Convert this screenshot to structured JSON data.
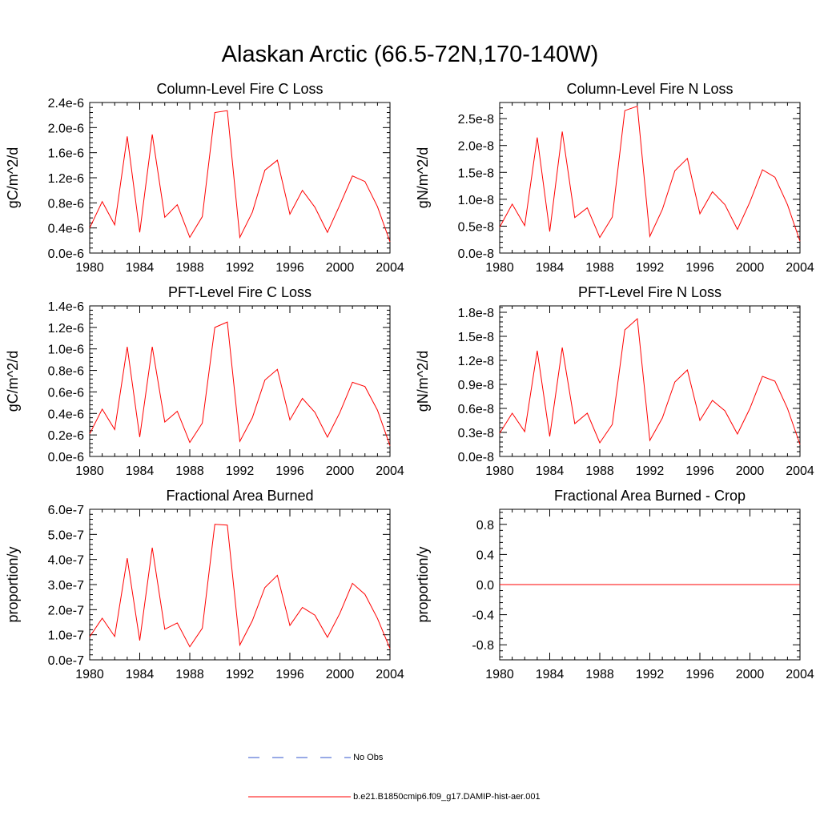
{
  "title": "Alaskan Arctic (66.5-72N,170-140W)",
  "colors": {
    "series": "#ff0000",
    "obs": "#3355cc",
    "axis": "#000000"
  },
  "legend": {
    "entries": [
      {
        "label": "No Obs",
        "style": "dashed",
        "color": "#3355cc"
      },
      {
        "label": "b.e21.B1850cmip6.f09_g17.DAMIP-hist-aer.001",
        "style": "solid",
        "color": "#ff0000"
      }
    ]
  },
  "chart_data": [
    {
      "type": "line",
      "title": "Column-Level Fire C Loss",
      "ylabel": "gC/m^2/d",
      "xlabel": "",
      "xlim": [
        1980,
        2004
      ],
      "ylim": [
        0,
        2.4e-06
      ],
      "xticks": [
        1980,
        1984,
        1988,
        1992,
        1996,
        2000,
        2004
      ],
      "yticks": [
        0,
        4e-07,
        8e-07,
        1.2e-06,
        1.6e-06,
        2e-06,
        2.4e-06
      ],
      "ytick_labels": [
        "0.0e-6",
        "0.4e-6",
        "0.8e-6",
        "1.2e-6",
        "1.6e-6",
        "2.0e-6",
        "2.4e-6"
      ],
      "x": [
        1980,
        1981,
        1982,
        1983,
        1984,
        1985,
        1986,
        1987,
        1988,
        1989,
        1990,
        1991,
        1992,
        1993,
        1994,
        1995,
        1996,
        1997,
        1998,
        1999,
        2000,
        2001,
        2002,
        2003,
        2004
      ],
      "series": [
        {
          "values": [
            4e-07,
            8.2e-07,
            4.5e-07,
            1.86e-06,
            3.3e-07,
            1.89e-06,
            5.7e-07,
            7.7e-07,
            2.5e-07,
            5.8e-07,
            2.24e-06,
            2.27e-06,
            2.5e-07,
            6.5e-07,
            1.32e-06,
            1.48e-06,
            6.2e-07,
            1e-06,
            7.3e-07,
            3.3e-07,
            7.7e-07,
            1.23e-06,
            1.14e-06,
            7.4e-07,
            1.8e-07
          ]
        }
      ]
    },
    {
      "type": "line",
      "title": "Column-Level Fire N Loss",
      "ylabel": "gN/m^2/d",
      "xlabel": "",
      "xlim": [
        1980,
        2004
      ],
      "ylim": [
        0,
        2.8e-08
      ],
      "xticks": [
        1980,
        1984,
        1988,
        1992,
        1996,
        2000,
        2004
      ],
      "yticks": [
        0,
        5e-09,
        1e-08,
        1.5e-08,
        2e-08,
        2.5e-08
      ],
      "ytick_labels": [
        "0.0e-8",
        "0.5e-8",
        "1.0e-8",
        "1.5e-8",
        "2.0e-8",
        "2.5e-8"
      ],
      "x": [
        1980,
        1981,
        1982,
        1983,
        1984,
        1985,
        1986,
        1987,
        1988,
        1989,
        1990,
        1991,
        1992,
        1993,
        1994,
        1995,
        1996,
        1997,
        1998,
        1999,
        2000,
        2001,
        2002,
        2003,
        2004
      ],
      "series": [
        {
          "values": [
            4.8e-09,
            9.1e-09,
            5.1e-09,
            2.15e-08,
            4e-09,
            2.26e-08,
            6.6e-09,
            8.4e-09,
            2.9e-09,
            6.7e-09,
            2.65e-08,
            2.73e-08,
            3.1e-09,
            8.1e-09,
            1.53e-08,
            1.76e-08,
            7.3e-09,
            1.14e-08,
            9e-09,
            4.4e-09,
            9.5e-09,
            1.55e-08,
            1.41e-08,
            9e-09,
            2.2e-09
          ]
        }
      ]
    },
    {
      "type": "line",
      "title": "PFT-Level Fire C Loss",
      "ylabel": "gC/m^2/d",
      "xlabel": "",
      "xlim": [
        1980,
        2004
      ],
      "ylim": [
        0,
        1.4e-06
      ],
      "xticks": [
        1980,
        1984,
        1988,
        1992,
        1996,
        2000,
        2004
      ],
      "yticks": [
        0,
        2e-07,
        4e-07,
        6e-07,
        8e-07,
        1e-06,
        1.2e-06,
        1.4e-06
      ],
      "ytick_labels": [
        "0.0e-6",
        "0.2e-6",
        "0.4e-6",
        "0.6e-6",
        "0.8e-6",
        "1.0e-6",
        "1.2e-6",
        "1.4e-6"
      ],
      "x": [
        1980,
        1981,
        1982,
        1983,
        1984,
        1985,
        1986,
        1987,
        1988,
        1989,
        1990,
        1991,
        1992,
        1993,
        1994,
        1995,
        1996,
        1997,
        1998,
        1999,
        2000,
        2001,
        2002,
        2003,
        2004
      ],
      "series": [
        {
          "values": [
            2.1e-07,
            4.4e-07,
            2.5e-07,
            1.02e-06,
            1.8e-07,
            1.02e-06,
            3.2e-07,
            4.2e-07,
            1.3e-07,
            3.1e-07,
            1.2e-06,
            1.25e-06,
            1.4e-07,
            3.6e-07,
            7.1e-07,
            8.1e-07,
            3.4e-07,
            5.4e-07,
            4.1e-07,
            1.8e-07,
            4.1e-07,
            6.9e-07,
            6.5e-07,
            4.3e-07,
            1e-07
          ]
        }
      ]
    },
    {
      "type": "line",
      "title": "PFT-Level Fire N Loss",
      "ylabel": "gN/m^2/d",
      "xlabel": "",
      "xlim": [
        1980,
        2004
      ],
      "ylim": [
        0,
        1.88e-08
      ],
      "xticks": [
        1980,
        1984,
        1988,
        1992,
        1996,
        2000,
        2004
      ],
      "yticks": [
        0,
        3e-09,
        6e-09,
        9e-09,
        1.2e-08,
        1.5e-08,
        1.8e-08
      ],
      "ytick_labels": [
        "0.0e-8",
        "0.3e-8",
        "0.6e-8",
        "0.9e-8",
        "1.2e-8",
        "1.5e-8",
        "1.8e-8"
      ],
      "x": [
        1980,
        1981,
        1982,
        1983,
        1984,
        1985,
        1986,
        1987,
        1988,
        1989,
        1990,
        1991,
        1992,
        1993,
        1994,
        1995,
        1996,
        1997,
        1998,
        1999,
        2000,
        2001,
        2002,
        2003,
        2004
      ],
      "series": [
        {
          "values": [
            2.9e-09,
            5.4e-09,
            3.1e-09,
            1.32e-08,
            2.5e-09,
            1.36e-08,
            4.1e-09,
            5.4e-09,
            1.7e-09,
            4e-09,
            1.58e-08,
            1.72e-08,
            2e-09,
            4.8e-09,
            9.3e-09,
            1.08e-08,
            4.5e-09,
            7e-09,
            5.7e-09,
            2.8e-09,
            6e-09,
            1e-08,
            9.4e-09,
            6e-09,
            1.5e-09
          ]
        }
      ]
    },
    {
      "type": "line",
      "title": "Fractional Area Burned",
      "ylabel": "proportion/y",
      "xlabel": "",
      "xlim": [
        1980,
        2004
      ],
      "ylim": [
        0,
        6e-07
      ],
      "xticks": [
        1980,
        1984,
        1988,
        1992,
        1996,
        2000,
        2004
      ],
      "yticks": [
        0,
        1e-07,
        2e-07,
        3e-07,
        4e-07,
        5e-07,
        6e-07
      ],
      "ytick_labels": [
        "0.0e-7",
        "1.0e-7",
        "2.0e-7",
        "3.0e-7",
        "4.0e-7",
        "5.0e-7",
        "6.0e-7"
      ],
      "x": [
        1980,
        1981,
        1982,
        1983,
        1984,
        1985,
        1986,
        1987,
        1988,
        1989,
        1990,
        1991,
        1992,
        1993,
        1994,
        1995,
        1996,
        1997,
        1998,
        1999,
        2000,
        2001,
        2002,
        2003,
        2004
      ],
      "series": [
        {
          "values": [
            9.2e-08,
            1.66e-07,
            9.3e-08,
            4.05e-07,
            7.7e-08,
            4.47e-07,
            1.22e-07,
            1.47e-07,
            5.2e-08,
            1.26e-07,
            5.4e-07,
            5.37e-07,
            5.9e-08,
            1.56e-07,
            2.88e-07,
            3.37e-07,
            1.37e-07,
            2.09e-07,
            1.78e-07,
            9e-08,
            1.86e-07,
            3.05e-07,
            2.61e-07,
            1.65e-07,
            4.5e-08
          ]
        }
      ]
    },
    {
      "type": "line",
      "title": "Fractional Area Burned - Crop",
      "ylabel": "proportion/y",
      "xlabel": "",
      "xlim": [
        1980,
        2004
      ],
      "ylim": [
        -1.0,
        1.0
      ],
      "xticks": [
        1980,
        1984,
        1988,
        1992,
        1996,
        2000,
        2004
      ],
      "yticks": [
        -0.8,
        -0.4,
        0.0,
        0.4,
        0.8
      ],
      "ytick_labels": [
        "-0.8",
        "-0.4",
        "0.0",
        "0.4",
        "0.8"
      ],
      "x": [
        1980,
        1981,
        1982,
        1983,
        1984,
        1985,
        1986,
        1987,
        1988,
        1989,
        1990,
        1991,
        1992,
        1993,
        1994,
        1995,
        1996,
        1997,
        1998,
        1999,
        2000,
        2001,
        2002,
        2003,
        2004
      ],
      "series": [
        {
          "values": [
            0,
            0,
            0,
            0,
            0,
            0,
            0,
            0,
            0,
            0,
            0,
            0,
            0,
            0,
            0,
            0,
            0,
            0,
            0,
            0,
            0,
            0,
            0,
            0,
            0
          ]
        }
      ]
    }
  ]
}
